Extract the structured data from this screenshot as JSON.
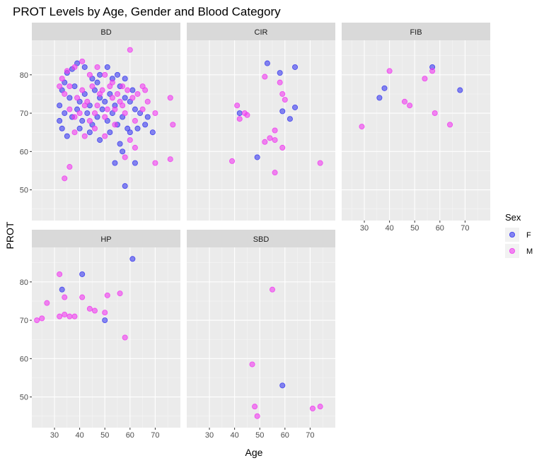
{
  "chart_data": {
    "type": "scatter",
    "title": "PROT Levels by Age, Gender and Blood Category",
    "xlabel": "Age",
    "ylabel": "PROT",
    "xlim": [
      21,
      80
    ],
    "ylim": [
      42,
      89
    ],
    "x_ticks": [
      30,
      40,
      50,
      60,
      70
    ],
    "y_ticks": [
      50,
      60,
      70,
      80
    ],
    "grid": true,
    "legend": {
      "title": "Sex",
      "position": "right",
      "entries": [
        {
          "key": "F",
          "label": "F",
          "color": "#3a3af0"
        },
        {
          "key": "M",
          "label": "M",
          "color": "#f03af0"
        }
      ]
    },
    "panels": [
      {
        "name": "BD",
        "points": [
          {
            "x": 35,
            "y": 80.5,
            "sex": "F"
          },
          {
            "x": 37,
            "y": 81.5,
            "sex": "F"
          },
          {
            "x": 39,
            "y": 83,
            "sex": "F"
          },
          {
            "x": 42,
            "y": 82,
            "sex": "F"
          },
          {
            "x": 45,
            "y": 79,
            "sex": "F"
          },
          {
            "x": 48,
            "y": 80,
            "sex": "F"
          },
          {
            "x": 51,
            "y": 82,
            "sex": "F"
          },
          {
            "x": 55,
            "y": 80,
            "sex": "F"
          },
          {
            "x": 33,
            "y": 76,
            "sex": "F"
          },
          {
            "x": 36,
            "y": 74,
            "sex": "F"
          },
          {
            "x": 38,
            "y": 77,
            "sex": "F"
          },
          {
            "x": 40,
            "y": 73,
            "sex": "F"
          },
          {
            "x": 42,
            "y": 75,
            "sex": "F"
          },
          {
            "x": 44,
            "y": 72,
            "sex": "F"
          },
          {
            "x": 46,
            "y": 76,
            "sex": "F"
          },
          {
            "x": 48,
            "y": 74,
            "sex": "F"
          },
          {
            "x": 50,
            "y": 73,
            "sex": "F"
          },
          {
            "x": 52,
            "y": 75,
            "sex": "F"
          },
          {
            "x": 54,
            "y": 72,
            "sex": "F"
          },
          {
            "x": 56,
            "y": 77,
            "sex": "F"
          },
          {
            "x": 58,
            "y": 74,
            "sex": "F"
          },
          {
            "x": 60,
            "y": 73,
            "sex": "F"
          },
          {
            "x": 62,
            "y": 71,
            "sex": "F"
          },
          {
            "x": 34,
            "y": 70,
            "sex": "F"
          },
          {
            "x": 37,
            "y": 69,
            "sex": "F"
          },
          {
            "x": 39,
            "y": 71,
            "sex": "F"
          },
          {
            "x": 41,
            "y": 68,
            "sex": "F"
          },
          {
            "x": 43,
            "y": 70,
            "sex": "F"
          },
          {
            "x": 45,
            "y": 67,
            "sex": "F"
          },
          {
            "x": 47,
            "y": 69,
            "sex": "F"
          },
          {
            "x": 49,
            "y": 71,
            "sex": "F"
          },
          {
            "x": 51,
            "y": 68,
            "sex": "F"
          },
          {
            "x": 53,
            "y": 70,
            "sex": "F"
          },
          {
            "x": 55,
            "y": 67,
            "sex": "F"
          },
          {
            "x": 57,
            "y": 69,
            "sex": "F"
          },
          {
            "x": 59,
            "y": 66,
            "sex": "F"
          },
          {
            "x": 33,
            "y": 66,
            "sex": "F"
          },
          {
            "x": 35,
            "y": 64,
            "sex": "F"
          },
          {
            "x": 40,
            "y": 66,
            "sex": "F"
          },
          {
            "x": 44,
            "y": 65,
            "sex": "F"
          },
          {
            "x": 48,
            "y": 63,
            "sex": "F"
          },
          {
            "x": 52,
            "y": 65,
            "sex": "F"
          },
          {
            "x": 56,
            "y": 62,
            "sex": "F"
          },
          {
            "x": 60,
            "y": 65,
            "sex": "F"
          },
          {
            "x": 63,
            "y": 66,
            "sex": "F"
          },
          {
            "x": 66,
            "y": 67,
            "sex": "F"
          },
          {
            "x": 69,
            "y": 65,
            "sex": "F"
          },
          {
            "x": 67,
            "y": 69,
            "sex": "F"
          },
          {
            "x": 64,
            "y": 70,
            "sex": "F"
          },
          {
            "x": 61,
            "y": 76,
            "sex": "F"
          },
          {
            "x": 32,
            "y": 72,
            "sex": "F"
          },
          {
            "x": 32,
            "y": 68,
            "sex": "F"
          },
          {
            "x": 34,
            "y": 78,
            "sex": "F"
          },
          {
            "x": 47,
            "y": 78,
            "sex": "F"
          },
          {
            "x": 53,
            "y": 79,
            "sex": "F"
          },
          {
            "x": 58,
            "y": 79,
            "sex": "F"
          },
          {
            "x": 54,
            "y": 57,
            "sex": "F"
          },
          {
            "x": 57,
            "y": 60,
            "sex": "F"
          },
          {
            "x": 62,
            "y": 57,
            "sex": "F"
          },
          {
            "x": 58,
            "y": 51,
            "sex": "F"
          },
          {
            "x": 33,
            "y": 79,
            "sex": "M"
          },
          {
            "x": 35,
            "y": 81,
            "sex": "M"
          },
          {
            "x": 38,
            "y": 82,
            "sex": "M"
          },
          {
            "x": 41,
            "y": 83.5,
            "sex": "M"
          },
          {
            "x": 44,
            "y": 80,
            "sex": "M"
          },
          {
            "x": 47,
            "y": 82,
            "sex": "M"
          },
          {
            "x": 50,
            "y": 80,
            "sex": "M"
          },
          {
            "x": 53,
            "y": 78,
            "sex": "M"
          },
          {
            "x": 57,
            "y": 77,
            "sex": "M"
          },
          {
            "x": 60,
            "y": 86.5,
            "sex": "M"
          },
          {
            "x": 34,
            "y": 75,
            "sex": "M"
          },
          {
            "x": 36,
            "y": 77,
            "sex": "M"
          },
          {
            "x": 39,
            "y": 74,
            "sex": "M"
          },
          {
            "x": 41,
            "y": 76,
            "sex": "M"
          },
          {
            "x": 43,
            "y": 73,
            "sex": "M"
          },
          {
            "x": 45,
            "y": 77,
            "sex": "M"
          },
          {
            "x": 47,
            "y": 72,
            "sex": "M"
          },
          {
            "x": 49,
            "y": 76,
            "sex": "M"
          },
          {
            "x": 51,
            "y": 71,
            "sex": "M"
          },
          {
            "x": 53,
            "y": 74,
            "sex": "M"
          },
          {
            "x": 55,
            "y": 75,
            "sex": "M"
          },
          {
            "x": 57,
            "y": 72,
            "sex": "M"
          },
          {
            "x": 59,
            "y": 76,
            "sex": "M"
          },
          {
            "x": 61,
            "y": 74,
            "sex": "M"
          },
          {
            "x": 63,
            "y": 75,
            "sex": "M"
          },
          {
            "x": 65,
            "y": 77,
            "sex": "M"
          },
          {
            "x": 67,
            "y": 73,
            "sex": "M"
          },
          {
            "x": 36,
            "y": 71,
            "sex": "M"
          },
          {
            "x": 38,
            "y": 69,
            "sex": "M"
          },
          {
            "x": 40,
            "y": 70,
            "sex": "M"
          },
          {
            "x": 42,
            "y": 72,
            "sex": "M"
          },
          {
            "x": 44,
            "y": 68,
            "sex": "M"
          },
          {
            "x": 46,
            "y": 70,
            "sex": "M"
          },
          {
            "x": 50,
            "y": 69,
            "sex": "M"
          },
          {
            "x": 54,
            "y": 71,
            "sex": "M"
          },
          {
            "x": 58,
            "y": 70,
            "sex": "M"
          },
          {
            "x": 62,
            "y": 68,
            "sex": "M"
          },
          {
            "x": 65,
            "y": 71,
            "sex": "M"
          },
          {
            "x": 70,
            "y": 70,
            "sex": "M"
          },
          {
            "x": 38,
            "y": 65,
            "sex": "M"
          },
          {
            "x": 42,
            "y": 64,
            "sex": "M"
          },
          {
            "x": 46,
            "y": 66,
            "sex": "M"
          },
          {
            "x": 50,
            "y": 64,
            "sex": "M"
          },
          {
            "x": 54,
            "y": 67,
            "sex": "M"
          },
          {
            "x": 60,
            "y": 63,
            "sex": "M"
          },
          {
            "x": 62,
            "y": 61,
            "sex": "M"
          },
          {
            "x": 58,
            "y": 58.5,
            "sex": "M"
          },
          {
            "x": 76,
            "y": 74,
            "sex": "M"
          },
          {
            "x": 77,
            "y": 67,
            "sex": "M"
          },
          {
            "x": 70,
            "y": 57,
            "sex": "M"
          },
          {
            "x": 76,
            "y": 58,
            "sex": "M"
          },
          {
            "x": 36,
            "y": 56,
            "sex": "M"
          },
          {
            "x": 34,
            "y": 53,
            "sex": "M"
          },
          {
            "x": 32,
            "y": 77,
            "sex": "M"
          },
          {
            "x": 48,
            "y": 75,
            "sex": "M"
          },
          {
            "x": 52,
            "y": 77,
            "sex": "M"
          },
          {
            "x": 56,
            "y": 73,
            "sex": "M"
          },
          {
            "x": 66,
            "y": 76,
            "sex": "M"
          }
        ]
      },
      {
        "name": "CIR",
        "points": [
          {
            "x": 53,
            "y": 83,
            "sex": "F"
          },
          {
            "x": 64,
            "y": 82,
            "sex": "F"
          },
          {
            "x": 58,
            "y": 80.5,
            "sex": "F"
          },
          {
            "x": 42,
            "y": 70,
            "sex": "F"
          },
          {
            "x": 59,
            "y": 70.5,
            "sex": "F"
          },
          {
            "x": 64,
            "y": 71.5,
            "sex": "F"
          },
          {
            "x": 62,
            "y": 68.5,
            "sex": "F"
          },
          {
            "x": 49,
            "y": 58.5,
            "sex": "F"
          },
          {
            "x": 52,
            "y": 79.5,
            "sex": "M"
          },
          {
            "x": 58,
            "y": 78,
            "sex": "M"
          },
          {
            "x": 59,
            "y": 75,
            "sex": "M"
          },
          {
            "x": 60,
            "y": 73.5,
            "sex": "M"
          },
          {
            "x": 41,
            "y": 72,
            "sex": "M"
          },
          {
            "x": 44,
            "y": 70,
            "sex": "M"
          },
          {
            "x": 45,
            "y": 69.5,
            "sex": "M"
          },
          {
            "x": 42,
            "y": 68.5,
            "sex": "M"
          },
          {
            "x": 56,
            "y": 65.5,
            "sex": "M"
          },
          {
            "x": 54,
            "y": 63.5,
            "sex": "M"
          },
          {
            "x": 52,
            "y": 62.5,
            "sex": "M"
          },
          {
            "x": 56,
            "y": 63,
            "sex": "M"
          },
          {
            "x": 59,
            "y": 61,
            "sex": "M"
          },
          {
            "x": 39,
            "y": 57.5,
            "sex": "M"
          },
          {
            "x": 56,
            "y": 54.5,
            "sex": "M"
          },
          {
            "x": 74,
            "y": 57,
            "sex": "M"
          }
        ]
      },
      {
        "name": "FIB",
        "points": [
          {
            "x": 57,
            "y": 82,
            "sex": "F"
          },
          {
            "x": 38,
            "y": 76.5,
            "sex": "F"
          },
          {
            "x": 36,
            "y": 74,
            "sex": "F"
          },
          {
            "x": 68,
            "y": 76,
            "sex": "F"
          },
          {
            "x": 40,
            "y": 81,
            "sex": "M"
          },
          {
            "x": 57,
            "y": 81,
            "sex": "M"
          },
          {
            "x": 54,
            "y": 79,
            "sex": "M"
          },
          {
            "x": 46,
            "y": 73,
            "sex": "M"
          },
          {
            "x": 48,
            "y": 72,
            "sex": "M"
          },
          {
            "x": 58,
            "y": 70,
            "sex": "M"
          },
          {
            "x": 64,
            "y": 67,
            "sex": "M"
          },
          {
            "x": 29,
            "y": 66.5,
            "sex": "M"
          }
        ]
      },
      {
        "name": "HP",
        "points": [
          {
            "x": 61,
            "y": 86,
            "sex": "F"
          },
          {
            "x": 41,
            "y": 82,
            "sex": "F"
          },
          {
            "x": 33,
            "y": 78,
            "sex": "F"
          },
          {
            "x": 50,
            "y": 70,
            "sex": "F"
          },
          {
            "x": 32,
            "y": 82,
            "sex": "M"
          },
          {
            "x": 27,
            "y": 74.5,
            "sex": "M"
          },
          {
            "x": 34,
            "y": 76,
            "sex": "M"
          },
          {
            "x": 41,
            "y": 76,
            "sex": "M"
          },
          {
            "x": 51,
            "y": 76.5,
            "sex": "M"
          },
          {
            "x": 56,
            "y": 77,
            "sex": "M"
          },
          {
            "x": 44,
            "y": 73,
            "sex": "M"
          },
          {
            "x": 46,
            "y": 72.5,
            "sex": "M"
          },
          {
            "x": 50,
            "y": 72,
            "sex": "M"
          },
          {
            "x": 32,
            "y": 71,
            "sex": "M"
          },
          {
            "x": 34,
            "y": 71.5,
            "sex": "M"
          },
          {
            "x": 36,
            "y": 71,
            "sex": "M"
          },
          {
            "x": 38,
            "y": 71,
            "sex": "M"
          },
          {
            "x": 23,
            "y": 70,
            "sex": "M"
          },
          {
            "x": 25,
            "y": 70.5,
            "sex": "M"
          },
          {
            "x": 58,
            "y": 65.5,
            "sex": "M"
          }
        ]
      },
      {
        "name": "SBD",
        "points": [
          {
            "x": 59,
            "y": 53,
            "sex": "F"
          },
          {
            "x": 55,
            "y": 78,
            "sex": "M"
          },
          {
            "x": 47,
            "y": 58.5,
            "sex": "M"
          },
          {
            "x": 48,
            "y": 47.5,
            "sex": "M"
          },
          {
            "x": 49,
            "y": 45,
            "sex": "M"
          },
          {
            "x": 71,
            "y": 47,
            "sex": "M"
          },
          {
            "x": 74,
            "y": 47.5,
            "sex": "M"
          }
        ]
      }
    ]
  }
}
